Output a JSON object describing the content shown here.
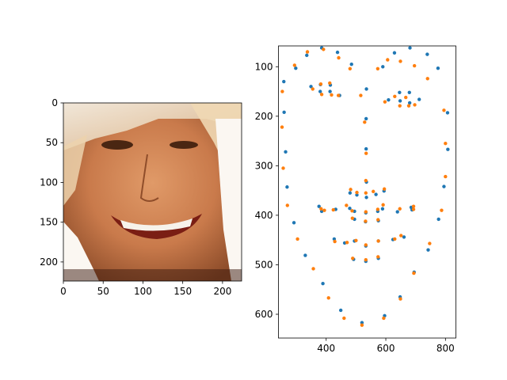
{
  "chart_data": [
    {
      "type": "image",
      "description_visible": "face photo",
      "xlim": [
        0,
        224
      ],
      "ylim": [
        224,
        0
      ],
      "xticks": [
        0,
        50,
        100,
        150,
        200
      ],
      "yticks": [
        0,
        50,
        100,
        150,
        200
      ],
      "xtick_labels": [
        "0",
        "50",
        "100",
        "150",
        "200"
      ],
      "ytick_labels": [
        "0",
        "50",
        "100",
        "150",
        "200"
      ],
      "title": "",
      "xlabel": "",
      "ylabel": ""
    },
    {
      "type": "scatter",
      "xlim": [
        240,
        835
      ],
      "ylim": [
        648,
        58
      ],
      "y_inverted": true,
      "xticks": [
        400,
        600,
        800
      ],
      "yticks": [
        100,
        200,
        300,
        400,
        500,
        600
      ],
      "xtick_labels": [
        "400",
        "600",
        "800"
      ],
      "ytick_labels": [
        "100",
        "200",
        "300",
        "400",
        "500",
        "600"
      ],
      "title": "",
      "xlabel": "",
      "ylabel": "",
      "grid": false,
      "series": [
        {
          "color": "#1f77b4",
          "points": [
            [
              258,
              130
            ],
            [
              259,
              192
            ],
            [
              264,
              272
            ],
            [
              269,
              343
            ],
            [
              292,
              415
            ],
            [
              330,
              481
            ],
            [
              389,
              538
            ],
            [
              449,
              592
            ],
            [
              520,
              617
            ],
            [
              596,
              603
            ],
            [
              648,
              565
            ],
            [
              695,
              515
            ],
            [
              742,
              470
            ],
            [
              777,
              408
            ],
            [
              795,
              342
            ],
            [
              808,
              267
            ],
            [
              807,
              193
            ],
            [
              298,
              103
            ],
            [
              335,
              77
            ],
            [
              385,
              62
            ],
            [
              438,
              71
            ],
            [
              485,
              95
            ],
            [
              590,
              100
            ],
            [
              629,
              72
            ],
            [
              681,
              62
            ],
            [
              739,
              75
            ],
            [
              775,
              103
            ],
            [
              535,
              145
            ],
            [
              534,
              205
            ],
            [
              534,
              266
            ],
            [
              535,
              333
            ],
            [
              480,
              355
            ],
            [
              503,
              359
            ],
            [
              535,
              364
            ],
            [
              567,
              358
            ],
            [
              594,
              351
            ],
            [
              349,
              140
            ],
            [
              381,
              136
            ],
            [
              414,
              137
            ],
            [
              445,
              158
            ],
            [
              413,
              150
            ],
            [
              380,
              150
            ],
            [
              609,
              167
            ],
            [
              646,
              152
            ],
            [
              679,
              152
            ],
            [
              712,
              166
            ],
            [
              680,
              173
            ],
            [
              648,
              169
            ],
            [
              376,
              382
            ],
            [
              432,
              388
            ],
            [
              479,
              386
            ],
            [
              495,
              392
            ],
            [
              533,
              395
            ],
            [
              573,
              392
            ],
            [
              589,
              387
            ],
            [
              639,
              393
            ],
            [
              688,
              389
            ],
            [
              661,
              444
            ],
            [
              624,
              449
            ],
            [
              575,
              452
            ],
            [
              533,
              462
            ],
            [
              495,
              452
            ],
            [
              462,
              456
            ],
            [
              427,
              448
            ],
            [
              385,
              392
            ],
            [
              495,
              408
            ],
            [
              532,
              413
            ],
            [
              575,
              411
            ],
            [
              685,
              384
            ],
            [
              575,
              487
            ],
            [
              533,
              493
            ],
            [
              492,
              489
            ]
          ]
        },
        {
          "color": "#ff7f0e",
          "points": [
            [
              253,
              150
            ],
            [
              252,
              222
            ],
            [
              256,
              305
            ],
            [
              270,
              380
            ],
            [
              304,
              448
            ],
            [
              357,
              508
            ],
            [
              408,
              567
            ],
            [
              460,
              608
            ],
            [
              520,
              622
            ],
            [
              593,
              608
            ],
            [
              649,
              569
            ],
            [
              694,
              517
            ],
            [
              747,
              457
            ],
            [
              787,
              390
            ],
            [
              800,
              322
            ],
            [
              800,
              255
            ],
            [
              795,
              188
            ],
            [
              294,
              97
            ],
            [
              337,
              70
            ],
            [
              391,
              65
            ],
            [
              442,
              82
            ],
            [
              480,
              104
            ],
            [
              573,
              104
            ],
            [
              606,
              86
            ],
            [
              649,
              89
            ],
            [
              696,
              98
            ],
            [
              740,
              124
            ],
            [
              516,
              158
            ],
            [
              529,
              212
            ],
            [
              534,
              275
            ],
            [
              533,
              330
            ],
            [
              482,
              348
            ],
            [
              503,
              354
            ],
            [
              533,
              355
            ],
            [
              558,
              352
            ],
            [
              595,
              347
            ],
            [
              355,
              145
            ],
            [
              382,
              135
            ],
            [
              412,
              133
            ],
            [
              441,
              158
            ],
            [
              418,
              157
            ],
            [
              385,
              156
            ],
            [
              597,
              171
            ],
            [
              630,
              160
            ],
            [
              667,
              162
            ],
            [
              697,
              177
            ],
            [
              677,
              179
            ],
            [
              647,
              179
            ],
            [
              383,
              387
            ],
            [
              424,
              389
            ],
            [
              468,
              380
            ],
            [
              487,
              391
            ],
            [
              533,
              393
            ],
            [
              573,
              388
            ],
            [
              591,
              379
            ],
            [
              647,
              387
            ],
            [
              693,
              382
            ],
            [
              651,
              441
            ],
            [
              630,
              448
            ],
            [
              575,
              452
            ],
            [
              533,
              460
            ],
            [
              500,
              451
            ],
            [
              470,
              455
            ],
            [
              429,
              453
            ],
            [
              394,
              390
            ],
            [
              488,
              406
            ],
            [
              532,
              412
            ],
            [
              574,
              409
            ],
            [
              693,
              388
            ],
            [
              574,
              484
            ],
            [
              533,
              490
            ],
            [
              489,
              487
            ]
          ]
        }
      ]
    }
  ]
}
